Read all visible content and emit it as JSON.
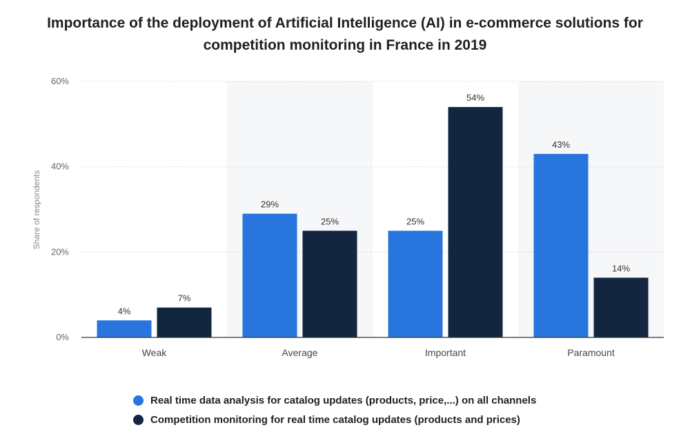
{
  "chart_data": {
    "type": "bar",
    "title": "Importance of the deployment of Artificial Intelligence (AI) in e-commerce solutions for competition monitoring in France in 2019",
    "xlabel": "",
    "ylabel": "Share of respondents",
    "categories": [
      "Weak",
      "Average",
      "Important",
      "Paramount"
    ],
    "series": [
      {
        "name": "Real time data analysis for catalog updates (products, price,...) on all channels",
        "values": [
          4,
          29,
          25,
          43
        ],
        "labels": [
          "4%",
          "29%",
          "25%",
          "43%"
        ],
        "color": "#2876dd"
      },
      {
        "name": "Competition monitoring for real time catalog updates (products and prices)",
        "values": [
          7,
          25,
          54,
          14
        ],
        "labels": [
          "7%",
          "25%",
          "54%",
          "14%"
        ],
        "color": "#13263f"
      }
    ],
    "ylim": [
      0,
      60
    ],
    "yticks": [
      0,
      20,
      40,
      60
    ],
    "ytick_labels": [
      "0%",
      "20%",
      "40%",
      "60%"
    ],
    "grid": true,
    "legend_position": "bottom-left"
  }
}
